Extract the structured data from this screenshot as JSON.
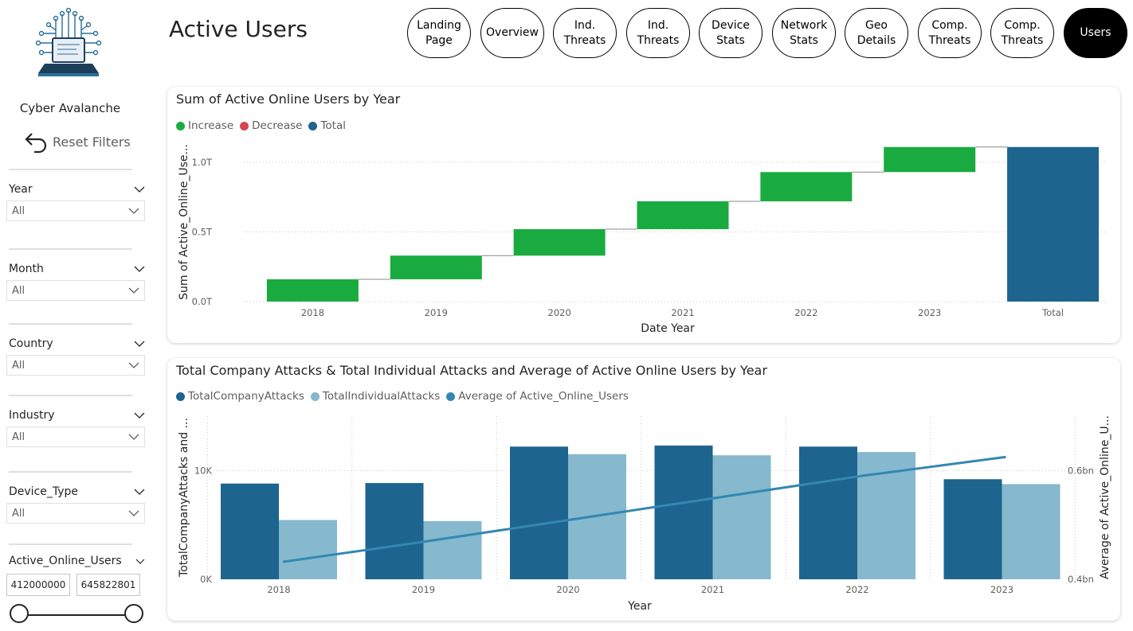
{
  "app": {
    "brand": "Cyber Avalanche",
    "page_title": "Active Users",
    "reset_label": "Reset Filters"
  },
  "nav": [
    {
      "label": "Landing\nPage",
      "active": false
    },
    {
      "label": "Overview",
      "active": false
    },
    {
      "label": "Ind.\nThreats",
      "active": false
    },
    {
      "label": "Ind.\nThreats",
      "active": false
    },
    {
      "label": "Device\nStats",
      "active": false
    },
    {
      "label": "Network\nStats",
      "active": false
    },
    {
      "label": "Geo\nDetails",
      "active": false
    },
    {
      "label": "Comp.\nThreats",
      "active": false
    },
    {
      "label": "Comp.\nThreats",
      "active": false
    },
    {
      "label": "Users",
      "active": true
    }
  ],
  "filters": [
    {
      "title": "Year",
      "value": "All"
    },
    {
      "title": "Month",
      "value": "All"
    },
    {
      "title": "Country",
      "value": "All"
    },
    {
      "title": "Industry",
      "value": "All"
    },
    {
      "title": "Device_Type",
      "value": "All"
    }
  ],
  "range_filter": {
    "title": "Active_Online_Users",
    "min": "412000000",
    "max": "645822801"
  },
  "colors": {
    "increase": "#1aab40",
    "decrease": "#d64550",
    "total": "#1d648e",
    "company": "#1d648e",
    "individual": "#86b8ce",
    "average": "#3388b2"
  },
  "chart_data": [
    {
      "type": "waterfall",
      "title": "Sum of Active Online Users by Year",
      "legend": [
        "Increase",
        "Decrease",
        "Total"
      ],
      "xlabel": "Date Year",
      "ylabel": "Sum of Active_Online_Use...",
      "categories": [
        "2018",
        "2019",
        "2020",
        "2021",
        "2022",
        "2023",
        "Total"
      ],
      "increments": [
        0.16,
        0.17,
        0.19,
        0.2,
        0.21,
        0.18
      ],
      "total": 1.11,
      "yticks": [
        "0.0T",
        "0.5T",
        "1.0T"
      ],
      "ytick_values": [
        0,
        0.5,
        1.0
      ],
      "ylim": [
        0,
        1.2
      ],
      "grid": true
    },
    {
      "type": "bar+line",
      "title": "Total Company Attacks & Total Individual Attacks and Average of Active Online Users by Year",
      "legend": [
        "TotalCompanyAttacks",
        "TotalIndividualAttacks",
        "Average of Active_Online_Users"
      ],
      "xlabel": "Year",
      "ylabel": "TotalCompanyAttacks and ...",
      "y2label": "Average of Active_Online_U...",
      "categories": [
        "2018",
        "2019",
        "2020",
        "2021",
        "2022",
        "2023"
      ],
      "series": [
        {
          "name": "TotalCompanyAttacks",
          "values": [
            8800,
            8850,
            12200,
            12300,
            12200,
            9200
          ]
        },
        {
          "name": "TotalIndividualAttacks",
          "values": [
            5450,
            5350,
            11500,
            11400,
            11700,
            8750
          ]
        }
      ],
      "line": {
        "name": "Average of Active_Online_Users",
        "values": [
          0.432,
          0.47,
          0.51,
          0.55,
          0.59,
          0.625
        ]
      },
      "yticks": [
        "0K",
        "10K"
      ],
      "ytick_values": [
        0,
        10000
      ],
      "ylim": [
        0,
        15000
      ],
      "y2ticks": [
        "0.4bn",
        "0.6bn"
      ],
      "y2tick_values": [
        0.4,
        0.6
      ],
      "y2lim": [
        0.4,
        0.7
      ],
      "grid": true
    }
  ]
}
